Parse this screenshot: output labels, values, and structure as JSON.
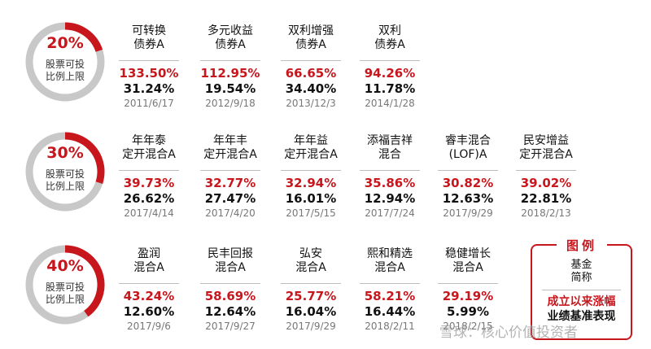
{
  "rows": [
    {
      "pct": "20%",
      "share": 0.2,
      "label": [
        "股票可投",
        "比例上限"
      ],
      "funds": [
        {
          "name": [
            "可转换",
            "债券A"
          ],
          "ret": "133.50%",
          "bench": "31.24%",
          "date": "2011/6/17"
        },
        {
          "name": [
            "多元收益",
            "债券A"
          ],
          "ret": "112.95%",
          "bench": "19.54%",
          "date": "2012/9/18"
        },
        {
          "name": [
            "双利增强",
            "债券A"
          ],
          "ret": "66.65%",
          "bench": "34.40%",
          "date": "2013/12/3"
        },
        {
          "name": [
            "双利",
            "债券A"
          ],
          "ret": "94.26%",
          "bench": "11.78%",
          "date": "2014/1/28"
        }
      ]
    },
    {
      "pct": "30%",
      "share": 0.3,
      "label": [
        "股票可投",
        "比例上限"
      ],
      "funds": [
        {
          "name": [
            "年年泰",
            "定开混合A"
          ],
          "ret": "39.73%",
          "bench": "26.62%",
          "date": "2017/4/14"
        },
        {
          "name": [
            "年年丰",
            "定开混合A"
          ],
          "ret": "32.77%",
          "bench": "27.47%",
          "date": "2017/4/20"
        },
        {
          "name": [
            "年年益",
            "定开混合A"
          ],
          "ret": "32.94%",
          "bench": "16.01%",
          "date": "2017/5/15"
        },
        {
          "name": [
            "添福吉祥",
            "混合"
          ],
          "ret": "35.86%",
          "bench": "12.94%",
          "date": "2017/7/24"
        },
        {
          "name": [
            "睿丰混合",
            "(LOF)A"
          ],
          "ret": "30.82%",
          "bench": "12.63%",
          "date": "2017/9/29"
        },
        {
          "name": [
            "民安增益",
            "定开混合A"
          ],
          "ret": "39.02%",
          "bench": "22.81%",
          "date": "2018/2/13"
        }
      ]
    },
    {
      "pct": "40%",
      "share": 0.4,
      "label": [
        "股票可投",
        "比例上限"
      ],
      "funds": [
        {
          "name": [
            "盈润",
            "混合A"
          ],
          "ret": "43.24%",
          "bench": "12.60%",
          "date": "2017/9/6"
        },
        {
          "name": [
            "民丰回报",
            "混合A"
          ],
          "ret": "58.69%",
          "bench": "12.64%",
          "date": "2017/9/27"
        },
        {
          "name": [
            "弘安",
            "混合A"
          ],
          "ret": "25.77%",
          "bench": "16.04%",
          "date": "2017/9/29"
        },
        {
          "name": [
            "熙和精选",
            "混合A"
          ],
          "ret": "58.21%",
          "bench": "16.44%",
          "date": "2018/2/11"
        },
        {
          "name": [
            "稳健增长",
            "混合A"
          ],
          "ret": "29.19%",
          "bench": "5.99%",
          "date": "2018/2/15"
        }
      ]
    }
  ],
  "legend": {
    "title": "图例",
    "name": [
      "基金",
      "简称"
    ],
    "ret": "成立以来涨幅",
    "bench": "业绩基准表现"
  },
  "watermark": "雪球：核心价值投资者",
  "colors": {
    "accent": "#c8161d",
    "ring_gray": "#c8c8c8"
  }
}
